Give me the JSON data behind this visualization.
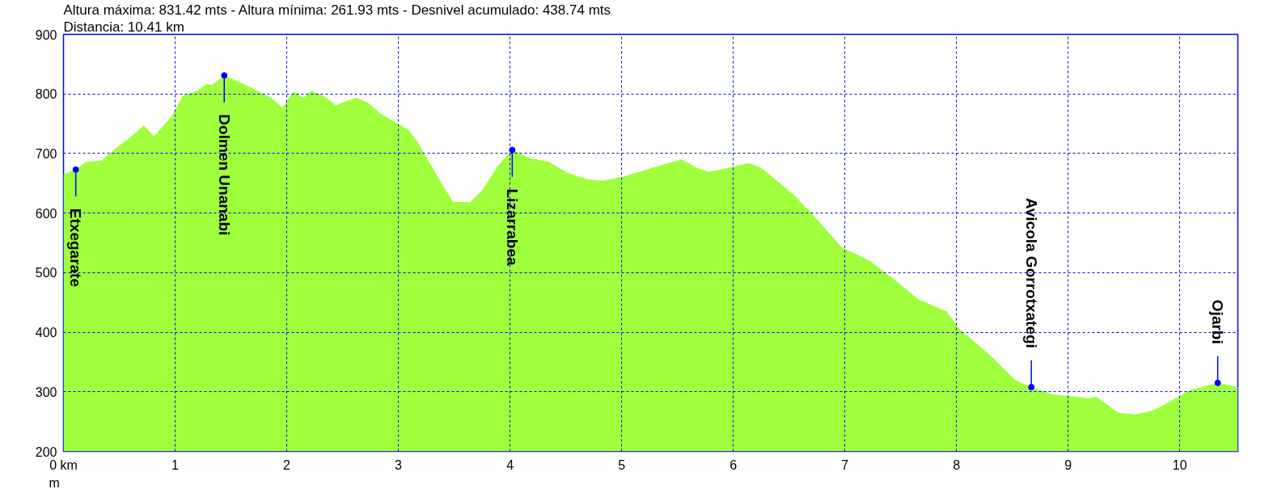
{
  "chart_data": {
    "type": "area",
    "title": "Altura máxima: 831.42 mts - Altura mínima: 261.93 mts - Desnivel acumulado: 438.74 mts",
    "subtitle": "Distancia: 10.41 km",
    "ylabel": "m",
    "x": [
      0,
      0.11,
      0.2,
      0.34,
      0.45,
      0.59,
      0.72,
      0.81,
      0.96,
      1.07,
      1.21,
      1.28,
      1.33,
      1.44,
      1.61,
      1.75,
      1.86,
      1.96,
      2.06,
      2.15,
      2.22,
      2.33,
      2.44,
      2.62,
      2.73,
      2.84,
      2.95,
      3.09,
      3.17,
      3.38,
      3.49,
      3.64,
      3.75,
      3.89,
      4.02,
      4.18,
      4.35,
      4.51,
      4.69,
      4.83,
      5.05,
      5.28,
      5.38,
      5.54,
      5.67,
      5.78,
      5.96,
      6.14,
      6.25,
      6.54,
      6.68,
      6.97,
      7.22,
      7.44,
      7.66,
      7.91,
      8.02,
      8.31,
      8.53,
      8.67,
      8.86,
      9.07,
      9.18,
      9.25,
      9.45,
      9.6,
      9.75,
      9.87,
      10.09,
      10.34,
      10.52
    ],
    "values": [
      665,
      673,
      686,
      688,
      706,
      726,
      747,
      729,
      760,
      797,
      806,
      817,
      815,
      831,
      817,
      804,
      794,
      777,
      804,
      794,
      805,
      797,
      781,
      794,
      785,
      767,
      755,
      740,
      720,
      652,
      619,
      618,
      638,
      679,
      706,
      692,
      686,
      668,
      657,
      654,
      663,
      676,
      682,
      690,
      676,
      669,
      676,
      684,
      676,
      631,
      604,
      543,
      520,
      489,
      455,
      435,
      407,
      360,
      319,
      308,
      296,
      292,
      289,
      292,
      265,
      262,
      268,
      279,
      303,
      315,
      308
    ],
    "color": "#a0ff3c",
    "xlim": [
      0,
      10.52
    ],
    "ylim": [
      200,
      900
    ],
    "xticks": [
      {
        "value": 0,
        "label": "0 km"
      },
      1,
      2,
      3,
      4,
      5,
      6,
      7,
      8,
      9,
      10
    ],
    "yticks": [
      200,
      300,
      400,
      500,
      600,
      700,
      800,
      900
    ],
    "grid": true,
    "annotations": [
      {
        "text": "Etxegarate",
        "x": 0.11,
        "y": 673
      },
      {
        "text": "Dolmen Unanabi",
        "x": 1.44,
        "y": 831
      },
      {
        "text": "Lizarrabea",
        "x": 4.02,
        "y": 706
      },
      {
        "text": "Avicola Gorrotxategi",
        "x": 8.67,
        "y": 308
      },
      {
        "text": "Ojarbi",
        "x": 10.34,
        "y": 315
      }
    ]
  }
}
